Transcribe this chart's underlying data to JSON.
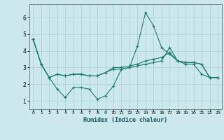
{
  "xlabel": "Humidex (Indice chaleur)",
  "ylabel": "",
  "background_color": "#cce8ec",
  "grid_color": "#aad0d4",
  "line_color": "#1a7a6e",
  "x_ticks": [
    0,
    1,
    2,
    3,
    4,
    5,
    6,
    7,
    8,
    9,
    10,
    11,
    12,
    13,
    14,
    15,
    16,
    17,
    18,
    19,
    20,
    21,
    22,
    23
  ],
  "y_ticks": [
    1,
    2,
    3,
    4,
    5,
    6
  ],
  "ylim": [
    0.5,
    6.8
  ],
  "xlim": [
    -0.5,
    23.5
  ],
  "series": [
    [
      4.7,
      3.2,
      2.4,
      1.7,
      1.2,
      1.8,
      1.8,
      1.7,
      1.1,
      1.3,
      1.9,
      2.9,
      3.0,
      4.3,
      6.3,
      5.5,
      4.2,
      3.8,
      3.4,
      3.2,
      3.2,
      2.6,
      2.4,
      2.4
    ],
    [
      4.7,
      3.2,
      2.4,
      2.6,
      2.5,
      2.6,
      2.6,
      2.5,
      2.5,
      2.7,
      3.0,
      3.0,
      3.1,
      3.2,
      3.4,
      3.5,
      3.6,
      3.9,
      3.4,
      3.3,
      3.3,
      3.2,
      2.4,
      2.4
    ],
    [
      4.7,
      3.2,
      2.4,
      2.6,
      2.5,
      2.6,
      2.6,
      2.5,
      2.5,
      2.7,
      2.9,
      2.9,
      3.0,
      3.1,
      3.2,
      3.3,
      3.4,
      4.2,
      3.4,
      3.3,
      3.3,
      3.2,
      2.4,
      2.4
    ]
  ]
}
